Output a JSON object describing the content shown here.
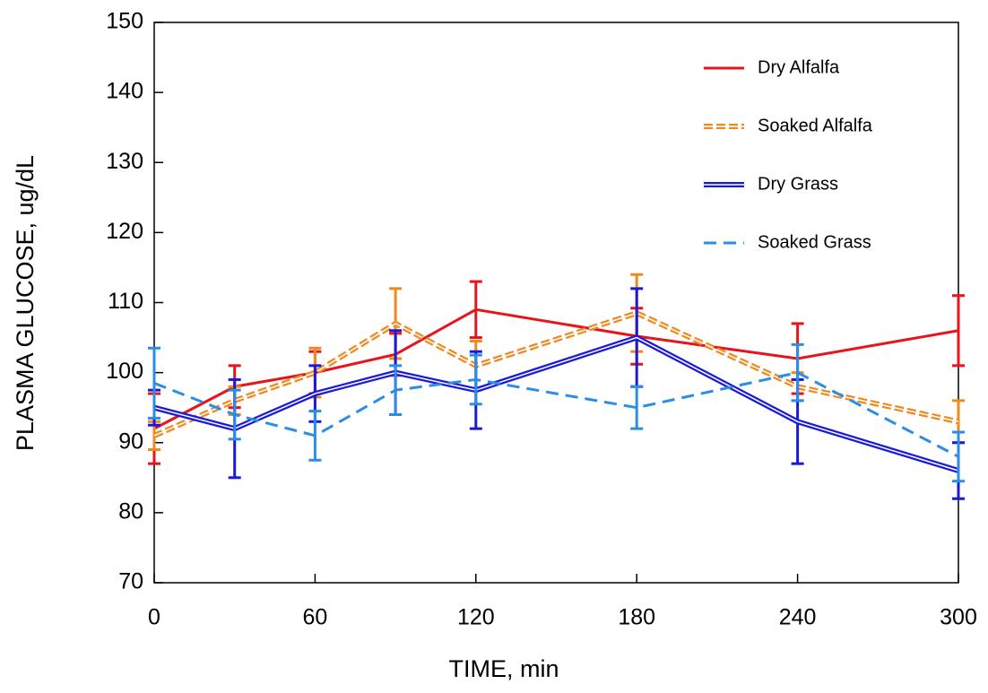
{
  "chart_data": {
    "type": "line",
    "x_label": "TIME, min",
    "y_label": "PLASMA GLUCOSE, ug/dL",
    "x": [
      0,
      30,
      60,
      90,
      120,
      180,
      240,
      300
    ],
    "xlim": [
      0,
      300
    ],
    "xticks": [
      0,
      60,
      120,
      180,
      240,
      300
    ],
    "ylim": [
      70,
      150
    ],
    "yticks": [
      70,
      80,
      90,
      100,
      110,
      120,
      130,
      140,
      150
    ],
    "legend": "upper right",
    "series": [
      {
        "name": "Dry Alfalfa",
        "color": "#e8141b",
        "style": "solid",
        "values": [
          92,
          98,
          100,
          102.6,
          109,
          105.2,
          102,
          106
        ],
        "errors": [
          5,
          3,
          3,
          3,
          4,
          4,
          5,
          5
        ]
      },
      {
        "name": "Soaked Alfalfa",
        "color": "#f08a1e",
        "style": "double-dash",
        "values": [
          91,
          96,
          100,
          107,
          101,
          108.5,
          98,
          93
        ],
        "errors": [
          2,
          2,
          3.5,
          5,
          3.5,
          5.5,
          2,
          3
        ]
      },
      {
        "name": "Dry Grass",
        "color": "#1a1adb",
        "style": "double",
        "values": [
          95,
          92,
          97,
          100,
          97.5,
          105,
          93,
          86
        ],
        "errors": [
          2.5,
          7,
          4,
          6,
          5.5,
          7,
          6,
          4
        ]
      },
      {
        "name": "Soaked Grass",
        "color": "#2a8ee6",
        "style": "dashed",
        "values": [
          98.5,
          94,
          91,
          97.5,
          99,
          95,
          100,
          88
        ],
        "errors": [
          5,
          3.5,
          3.5,
          3.5,
          3.5,
          3,
          4,
          3.5
        ]
      }
    ]
  }
}
